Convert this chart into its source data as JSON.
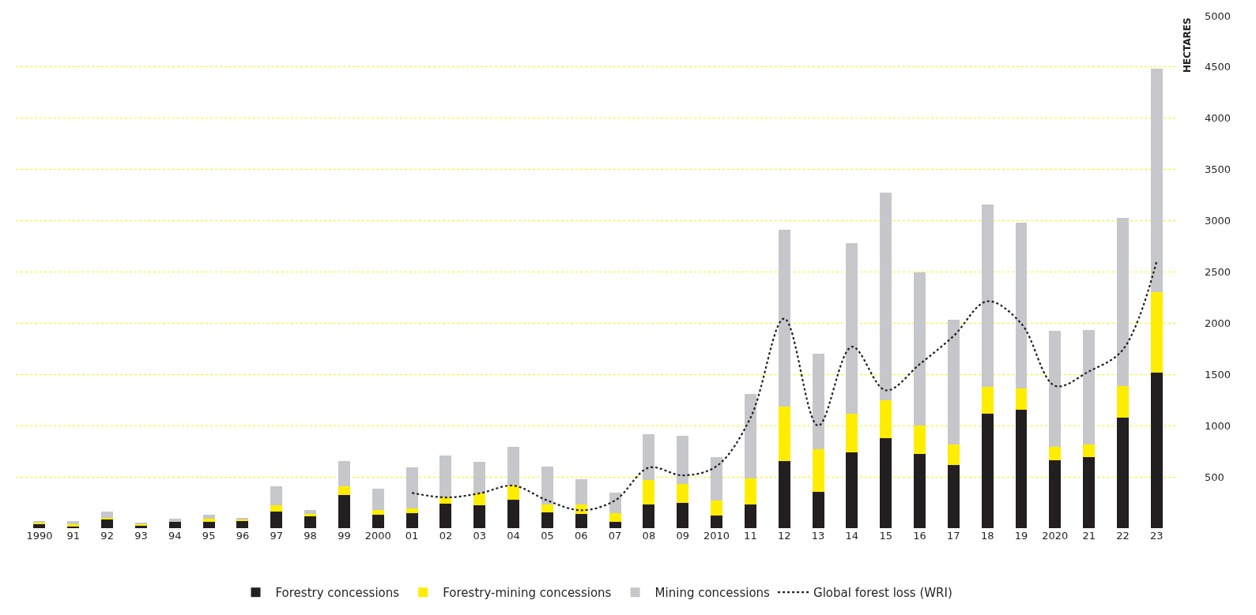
{
  "chart_data": {
    "type": "bar",
    "stacked": true,
    "ylabel": "HECTARES",
    "categories": [
      "1990",
      "91",
      "92",
      "93",
      "94",
      "95",
      "96",
      "97",
      "98",
      "99",
      "2000",
      "01",
      "02",
      "03",
      "04",
      "05",
      "06",
      "07",
      "08",
      "09",
      "2010",
      "11",
      "12",
      "13",
      "14",
      "15",
      "16",
      "17",
      "18",
      "19",
      "2020",
      "21",
      "22",
      "23"
    ],
    "series": [
      {
        "name": "Forestry concessions",
        "color": "#231f20",
        "values": [
          40,
          22,
          90,
          25,
          60,
          60,
          70,
          165,
          120,
          325,
          130,
          150,
          240,
          220,
          280,
          155,
          135,
          65,
          230,
          245,
          120,
          235,
          655,
          355,
          740,
          880,
          725,
          620,
          1115,
          1155,
          665,
          690,
          1080,
          1515
        ]
      },
      {
        "name": "Forestry-mining concessions",
        "color": "#ffed00",
        "values": [
          15,
          15,
          10,
          15,
          0,
          30,
          15,
          60,
          15,
          80,
          45,
          40,
          60,
          120,
          135,
          75,
          100,
          85,
          240,
          190,
          150,
          250,
          535,
          415,
          380,
          370,
          275,
          200,
          265,
          210,
          130,
          125,
          305,
          785
        ]
      },
      {
        "name": "Mining concessions",
        "color": "#c6c7cb",
        "values": [
          15,
          33,
          65,
          15,
          30,
          40,
          13,
          185,
          45,
          250,
          210,
          400,
          405,
          310,
          380,
          370,
          240,
          200,
          450,
          470,
          425,
          825,
          1725,
          935,
          1665,
          2025,
          1495,
          1215,
          1775,
          1615,
          1130,
          1120,
          1640,
          2185
        ]
      },
      {
        "name": "Global forest loss (WRI)",
        "type": "line",
        "color": "#231f20",
        "line_style": "dotted",
        "values": [
          null,
          null,
          null,
          null,
          null,
          null,
          null,
          null,
          null,
          null,
          null,
          345,
          300,
          340,
          415,
          270,
          175,
          270,
          590,
          515,
          605,
          1075,
          2045,
          1000,
          1770,
          1345,
          1600,
          1875,
          2214,
          1997,
          1389,
          1530,
          1741,
          2605
        ]
      }
    ],
    "ylim": [
      0,
      5000
    ],
    "yticks": [
      500,
      1000,
      1500,
      2000,
      2500,
      3000,
      3500,
      4000,
      4500,
      5000
    ],
    "grid": "y",
    "legend": "bottom"
  }
}
